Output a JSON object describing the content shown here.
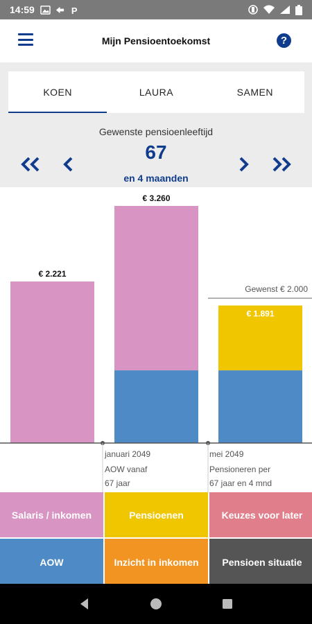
{
  "status": {
    "time": "14:59",
    "icons": [
      "image-icon",
      "sync-icon",
      "parking-icon",
      "vibrate-icon",
      "wifi-icon",
      "battery-icon"
    ]
  },
  "appbar": {
    "title": "Mijn Pensioentoekomst",
    "help": "?"
  },
  "tabs": [
    {
      "label": "KOEN",
      "active": true
    },
    {
      "label": "LAURA",
      "active": false
    },
    {
      "label": "SAMEN",
      "active": false
    }
  ],
  "age": {
    "label": "Gewenste pensioenleeftijd",
    "value": "67",
    "months": "en 4 maanden"
  },
  "chart_data": {
    "type": "bar",
    "stacked": true,
    "bars": [
      {
        "label": "€ 2.221",
        "total": 2221,
        "segments": [
          {
            "key": "salaris",
            "value": 2221
          }
        ]
      },
      {
        "label": "€ 3.260",
        "total": 3260,
        "segments": [
          {
            "key": "aow",
            "value": 1000
          },
          {
            "key": "salaris",
            "value": 2260
          }
        ]
      },
      {
        "label": "€ 1.891",
        "total": 1891,
        "segments": [
          {
            "key": "aow",
            "value": 1000
          },
          {
            "key": "pensioenen",
            "value": 891
          }
        ]
      }
    ],
    "ylim": [
      0,
      3500
    ],
    "desired": {
      "label": "Gewenst € 2.000",
      "value": 2000
    },
    "markers": [
      {
        "date": "januari 2049",
        "lines": [
          "AOW vanaf",
          "67 jaar"
        ]
      },
      {
        "date": "mei 2049",
        "lines": [
          "Pensioneren per",
          "67 jaar en 4 mnd"
        ]
      }
    ],
    "colors": {
      "salaris": "#d895c4",
      "aow": "#4e8ac5",
      "pensioenen": "#f0c600"
    }
  },
  "grid": [
    {
      "label": "Salaris / inkomen",
      "color": "#d895c4"
    },
    {
      "label": "Pensioenen",
      "color": "#f0c600"
    },
    {
      "label": "Keuzes voor later",
      "color": "#e07f8b"
    },
    {
      "label": "AOW",
      "color": "#4e8ac5"
    },
    {
      "label": "Inzicht in inkomen",
      "color": "#f29422"
    },
    {
      "label": "Pensioen situatie",
      "color": "#555555"
    }
  ]
}
